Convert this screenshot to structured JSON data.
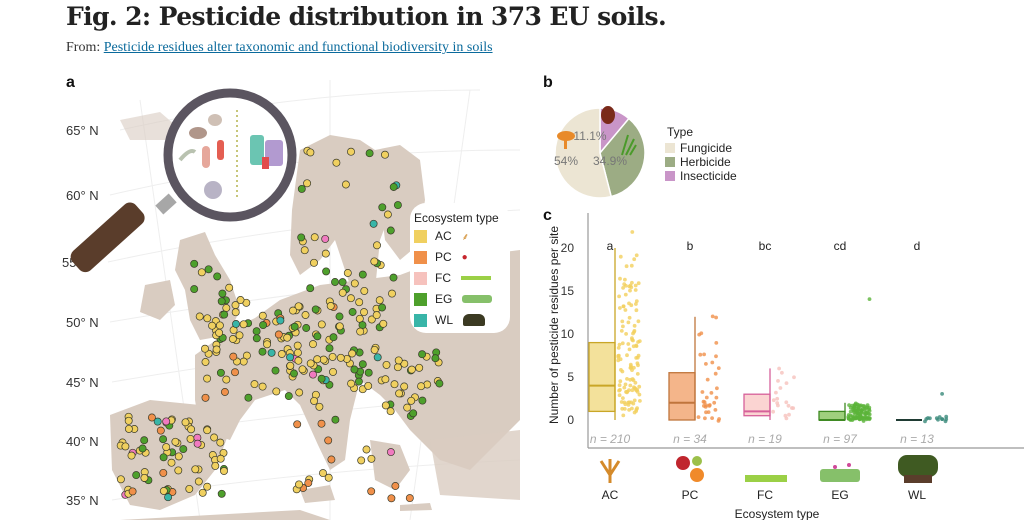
{
  "header": {
    "title": "Fig. 2: Pesticide distribution in 373 EU soils.",
    "from_label": "From: ",
    "from_link": "Pesticide residues alter taxonomic and functional biodiversity in soils"
  },
  "panels": {
    "a": "a",
    "b": "b",
    "c": "c"
  },
  "map": {
    "latitude_labels": [
      "65° N",
      "60° N",
      "55° N",
      "50° N",
      "45° N",
      "40° N",
      "35° N"
    ],
    "magnifier_icon": "magnifying-glass-icon",
    "legend": {
      "title": "Ecosystem type",
      "items": [
        {
          "code": "AC",
          "color": "#f0d060",
          "icon": "wheat-icon"
        },
        {
          "code": "PC",
          "color": "#f0904a",
          "icon": "fruit-icon"
        },
        {
          "code": "FC",
          "color": "#f6c2bd",
          "icon": "grass-icon"
        },
        {
          "code": "EG",
          "color": "#4ea02c",
          "icon": "meadow-icon"
        },
        {
          "code": "WL",
          "color": "#38b5a8",
          "icon": "tree-icon"
        }
      ]
    },
    "land_color": "#d9ccc1",
    "sea_color": "#ffffff"
  },
  "pie": {
    "legend_title": "Type",
    "slices": [
      {
        "label": "Fungicide",
        "percent": 54,
        "text": "54%",
        "color": "#ece5d3"
      },
      {
        "label": "Herbicide",
        "percent": 34.9,
        "text": "34.9%",
        "color": "#9cac84"
      },
      {
        "label": "Insecticide",
        "percent": 11.1,
        "text": "11.1%",
        "color": "#c995c8"
      }
    ]
  },
  "chart_data": {
    "type": "box",
    "title": "",
    "xlabel": "Ecosystem type",
    "ylabel": "Number of pesticide residues per site",
    "ylim": [
      0,
      22
    ],
    "yticks": [
      0,
      5,
      10,
      15,
      20
    ],
    "categories": [
      "AC",
      "PC",
      "FC",
      "EG",
      "WL"
    ],
    "series": [
      {
        "name": "AC",
        "n_label": "n = 210",
        "n": 210,
        "group_letter": "a",
        "q1": 1,
        "median": 4,
        "q3": 9,
        "whisker_low": 0,
        "whisker_high": 20,
        "max_point": 22,
        "color": "#c9a627",
        "fill": "#f3e19b",
        "point_color": "#f2cf5c"
      },
      {
        "name": "PC",
        "n_label": "n = 34",
        "n": 34,
        "group_letter": "b",
        "q1": 0,
        "median": 2,
        "q3": 5.5,
        "whisker_low": 0,
        "whisker_high": 12,
        "max_point": 12,
        "color": "#c0753c",
        "fill": "#f4b58a",
        "point_color": "#f0904a"
      },
      {
        "name": "FC",
        "n_label": "n = 19",
        "n": 19,
        "group_letter": "bc",
        "q1": 0.5,
        "median": 1,
        "q3": 3,
        "whisker_low": 0,
        "whisker_high": 6,
        "max_point": 6,
        "color": "#d6609a",
        "fill": "#fbd4d2",
        "point_color": "#f6c2bd"
      },
      {
        "name": "EG",
        "n_label": "n = 97",
        "n": 97,
        "group_letter": "cd",
        "q1": 0,
        "median": 0,
        "q3": 1,
        "whisker_low": 0,
        "whisker_high": 2,
        "max_point": 14,
        "color": "#3f8a23",
        "fill": "#9fd07e",
        "point_color": "#5bb43a"
      },
      {
        "name": "WL",
        "n_label": "n = 13",
        "n": 13,
        "group_letter": "d",
        "q1": 0,
        "median": 0,
        "q3": 0,
        "whisker_low": 0,
        "whisker_high": 0,
        "max_point": 3,
        "color": "#1f3b33",
        "fill": "#1f3b33",
        "point_color": "#3a8a7a"
      }
    ],
    "category_icons": [
      "wheat-icon",
      "fruit-icon",
      "grass-icon",
      "meadow-icon",
      "tree-icon"
    ]
  }
}
